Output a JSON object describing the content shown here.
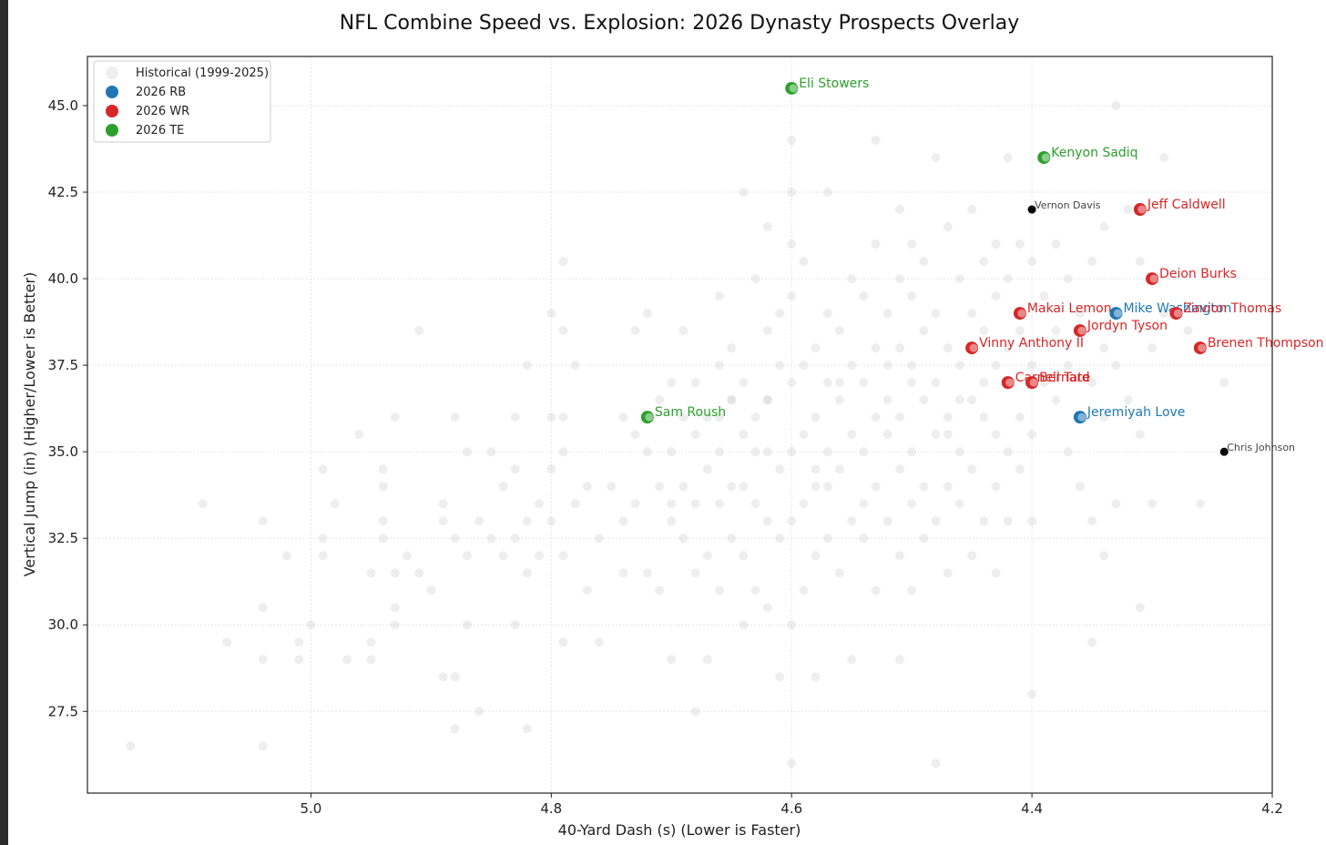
{
  "chart_data": {
    "type": "scatter",
    "title": "NFL Combine Speed vs. Explosion: 2026 Dynasty Prospects Overlay",
    "xlabel": "40-Yard Dash (s) (Lower is Faster)",
    "ylabel": "Vertical Jump (in) (Higher/Lower is Better)",
    "xlim": [
      5.186,
      4.2
    ],
    "ylim": [
      25.14,
      46.42
    ],
    "x_inverted": true,
    "x_ticks": [
      5.0,
      4.8,
      4.6,
      4.4,
      4.2
    ],
    "x_tick_labels": [
      "5.0",
      "4.8",
      "4.6",
      "4.4",
      "4.2"
    ],
    "y_ticks": [
      27.5,
      30.0,
      32.5,
      35.0,
      37.5,
      40.0,
      42.5,
      45.0
    ],
    "y_tick_labels": [
      "27.5",
      "30.0",
      "32.5",
      "35.0",
      "37.5",
      "40.0",
      "42.5",
      "45.0"
    ],
    "grid": true,
    "legend_position": "top-left",
    "legend": [
      {
        "label": "Historical (1999-2025)",
        "color": "#d9d9d9"
      },
      {
        "label": "2026 RB",
        "color": "#1f77b4"
      },
      {
        "label": "2026 WR",
        "color": "#d62728"
      },
      {
        "label": "2026 TE",
        "color": "#2ca02c"
      }
    ],
    "series": [
      {
        "name": "2026 RB",
        "color": "#1f77b4",
        "points": [
          {
            "label": "Mike Washington",
            "x": 4.33,
            "y": 39.0
          },
          {
            "label": "Jeremiyah Love",
            "x": 4.36,
            "y": 36.0
          }
        ]
      },
      {
        "name": "2026 WR",
        "color": "#d62728",
        "points": [
          {
            "label": "Jeff Caldwell",
            "x": 4.31,
            "y": 42.0
          },
          {
            "label": "Deion Burks",
            "x": 4.3,
            "y": 40.0
          },
          {
            "label": "Makai Lemon",
            "x": 4.41,
            "y": 39.0
          },
          {
            "label": "Zavion Thomas",
            "x": 4.28,
            "y": 39.0
          },
          {
            "label": "Jordyn Tyson",
            "x": 4.36,
            "y": 38.5
          },
          {
            "label": "Vinny Anthony II",
            "x": 4.45,
            "y": 38.0
          },
          {
            "label": "Brenen Thompson",
            "x": 4.26,
            "y": 38.0
          },
          {
            "label": "Carnell Tate",
            "x": 4.42,
            "y": 37.0
          },
          {
            "label": "Bernard",
            "x": 4.4,
            "y": 37.0
          }
        ]
      },
      {
        "name": "2026 TE",
        "color": "#2ca02c",
        "points": [
          {
            "label": "Eli Stowers",
            "x": 4.6,
            "y": 45.5
          },
          {
            "label": "Kenyon Sadiq",
            "x": 4.39,
            "y": 43.5
          },
          {
            "label": "Sam Roush",
            "x": 4.72,
            "y": 36.0
          }
        ]
      }
    ],
    "reference_points": [
      {
        "label": "Vernon Davis",
        "x": 4.4,
        "y": 42.0,
        "color": "#000000"
      },
      {
        "label": "Chris Johnson",
        "x": 4.24,
        "y": 35.0,
        "color": "#000000"
      }
    ],
    "historical": [
      [
        5.15,
        26.5
      ],
      [
        5.04,
        26.5
      ],
      [
        5.09,
        33.5
      ],
      [
        5.07,
        29.5
      ],
      [
        5.04,
        30.5
      ],
      [
        5.04,
        29.0
      ],
      [
        5.04,
        33.0
      ],
      [
        5.02,
        32.0
      ],
      [
        5.01,
        29.0
      ],
      [
        5.01,
        29.5
      ],
      [
        5.0,
        30.0
      ],
      [
        4.99,
        34.5
      ],
      [
        4.99,
        32.5
      ],
      [
        4.99,
        32.0
      ],
      [
        4.98,
        33.5
      ],
      [
        4.97,
        29.0
      ],
      [
        4.96,
        35.5
      ],
      [
        4.95,
        29.5
      ],
      [
        4.95,
        29.0
      ],
      [
        4.95,
        31.5
      ],
      [
        4.94,
        34.5
      ],
      [
        4.94,
        34.0
      ],
      [
        4.94,
        33.0
      ],
      [
        4.94,
        32.5
      ],
      [
        4.93,
        31.5
      ],
      [
        4.93,
        30.5
      ],
      [
        4.93,
        30.0
      ],
      [
        4.92,
        32.0
      ],
      [
        4.91,
        38.5
      ],
      [
        4.91,
        31.5
      ],
      [
        4.9,
        31.0
      ],
      [
        4.89,
        33.5
      ],
      [
        4.89,
        33.0
      ],
      [
        4.89,
        28.5
      ],
      [
        4.88,
        36.0
      ],
      [
        4.88,
        32.5
      ],
      [
        4.88,
        28.5
      ],
      [
        4.88,
        27.0
      ],
      [
        4.87,
        35.0
      ],
      [
        4.87,
        32.0
      ],
      [
        4.86,
        33.0
      ],
      [
        4.86,
        27.5
      ],
      [
        4.85,
        35.0
      ],
      [
        4.85,
        32.5
      ],
      [
        4.84,
        34.0
      ],
      [
        4.84,
        32.0
      ],
      [
        4.83,
        36.0
      ],
      [
        4.83,
        34.5
      ],
      [
        4.83,
        32.5
      ],
      [
        4.83,
        30.0
      ],
      [
        4.82,
        37.5
      ],
      [
        4.82,
        33.0
      ],
      [
        4.82,
        31.5
      ],
      [
        4.82,
        27.0
      ],
      [
        4.81,
        33.5
      ],
      [
        4.81,
        32.0
      ],
      [
        4.8,
        39.0
      ],
      [
        4.8,
        36.0
      ],
      [
        4.8,
        34.5
      ],
      [
        4.8,
        33.0
      ],
      [
        4.79,
        40.5
      ],
      [
        4.79,
        38.5
      ],
      [
        4.79,
        36.0
      ],
      [
        4.79,
        35.0
      ],
      [
        4.79,
        32.0
      ],
      [
        4.79,
        29.5
      ],
      [
        4.78,
        37.5
      ],
      [
        4.78,
        33.5
      ],
      [
        4.77,
        34.0
      ],
      [
        4.77,
        31.0
      ],
      [
        4.76,
        32.5
      ],
      [
        4.75,
        34.0
      ],
      [
        4.74,
        36.0
      ],
      [
        4.74,
        33.0
      ],
      [
        4.74,
        31.5
      ],
      [
        4.73,
        38.5
      ],
      [
        4.73,
        35.5
      ],
      [
        4.73,
        33.5
      ],
      [
        4.72,
        39.0
      ],
      [
        4.72,
        35.0
      ],
      [
        4.71,
        36.5
      ],
      [
        4.71,
        34.0
      ],
      [
        4.71,
        31.0
      ],
      [
        4.7,
        37.0
      ],
      [
        4.7,
        35.0
      ],
      [
        4.7,
        33.0
      ],
      [
        4.7,
        29.0
      ],
      [
        4.69,
        38.5
      ],
      [
        4.69,
        36.0
      ],
      [
        4.69,
        34.0
      ],
      [
        4.68,
        37.0
      ],
      [
        4.68,
        35.5
      ],
      [
        4.68,
        33.5
      ],
      [
        4.68,
        31.5
      ],
      [
        4.68,
        27.5
      ],
      [
        4.67,
        36.0
      ],
      [
        4.67,
        34.5
      ],
      [
        4.67,
        32.0
      ],
      [
        4.67,
        29.0
      ],
      [
        4.66,
        39.5
      ],
      [
        4.66,
        37.5
      ],
      [
        4.66,
        36.0
      ],
      [
        4.66,
        35.0
      ],
      [
        4.66,
        33.5
      ],
      [
        4.66,
        31.0
      ],
      [
        4.65,
        38.0
      ],
      [
        4.65,
        36.5
      ],
      [
        4.65,
        34.0
      ],
      [
        4.65,
        32.5
      ],
      [
        4.64,
        42.5
      ],
      [
        4.64,
        37.0
      ],
      [
        4.64,
        35.5
      ],
      [
        4.64,
        34.0
      ],
      [
        4.64,
        32.0
      ],
      [
        4.64,
        30.0
      ],
      [
        4.63,
        40.0
      ],
      [
        4.63,
        36.0
      ],
      [
        4.63,
        33.5
      ],
      [
        4.63,
        31.0
      ],
      [
        4.62,
        41.5
      ],
      [
        4.62,
        38.5
      ],
      [
        4.62,
        36.5
      ],
      [
        4.62,
        35.0
      ],
      [
        4.62,
        33.0
      ],
      [
        4.62,
        30.5
      ],
      [
        4.61,
        39.0
      ],
      [
        4.61,
        37.5
      ],
      [
        4.61,
        34.5
      ],
      [
        4.61,
        32.5
      ],
      [
        4.61,
        28.5
      ],
      [
        4.6,
        44.0
      ],
      [
        4.6,
        42.5
      ],
      [
        4.6,
        41.0
      ],
      [
        4.6,
        39.5
      ],
      [
        4.6,
        37.0
      ],
      [
        4.6,
        35.0
      ],
      [
        4.6,
        33.0
      ],
      [
        4.6,
        30.0
      ],
      [
        4.6,
        26.0
      ],
      [
        4.59,
        40.5
      ],
      [
        4.59,
        37.5
      ],
      [
        4.59,
        35.5
      ],
      [
        4.59,
        33.5
      ],
      [
        4.59,
        31.0
      ],
      [
        4.58,
        38.0
      ],
      [
        4.58,
        36.0
      ],
      [
        4.58,
        34.0
      ],
      [
        4.58,
        32.0
      ],
      [
        4.58,
        28.5
      ],
      [
        4.57,
        42.5
      ],
      [
        4.57,
        39.0
      ],
      [
        4.57,
        37.0
      ],
      [
        4.57,
        35.0
      ],
      [
        4.57,
        32.5
      ],
      [
        4.56,
        38.5
      ],
      [
        4.56,
        36.5
      ],
      [
        4.56,
        34.5
      ],
      [
        4.56,
        31.5
      ],
      [
        4.55,
        40.0
      ],
      [
        4.55,
        37.5
      ],
      [
        4.55,
        35.5
      ],
      [
        4.55,
        33.0
      ],
      [
        4.55,
        29.0
      ],
      [
        4.54,
        39.5
      ],
      [
        4.54,
        37.0
      ],
      [
        4.54,
        35.0
      ],
      [
        4.54,
        32.5
      ],
      [
        4.53,
        44.0
      ],
      [
        4.53,
        41.0
      ],
      [
        4.53,
        38.0
      ],
      [
        4.53,
        36.0
      ],
      [
        4.53,
        34.0
      ],
      [
        4.53,
        31.0
      ],
      [
        4.52,
        39.0
      ],
      [
        4.52,
        37.5
      ],
      [
        4.52,
        35.5
      ],
      [
        4.52,
        33.0
      ],
      [
        4.51,
        42.0
      ],
      [
        4.51,
        40.0
      ],
      [
        4.51,
        38.0
      ],
      [
        4.51,
        36.0
      ],
      [
        4.51,
        34.5
      ],
      [
        4.51,
        32.0
      ],
      [
        4.51,
        29.0
      ],
      [
        4.5,
        41.0
      ],
      [
        4.5,
        39.5
      ],
      [
        4.5,
        37.0
      ],
      [
        4.5,
        35.0
      ],
      [
        4.5,
        33.5
      ],
      [
        4.5,
        31.0
      ],
      [
        4.49,
        40.5
      ],
      [
        4.49,
        38.5
      ],
      [
        4.49,
        36.5
      ],
      [
        4.49,
        34.0
      ],
      [
        4.49,
        32.5
      ],
      [
        4.48,
        43.5
      ],
      [
        4.48,
        39.0
      ],
      [
        4.48,
        37.0
      ],
      [
        4.48,
        35.5
      ],
      [
        4.48,
        33.0
      ],
      [
        4.48,
        26.0
      ],
      [
        4.47,
        41.5
      ],
      [
        4.47,
        38.0
      ],
      [
        4.47,
        36.0
      ],
      [
        4.47,
        34.0
      ],
      [
        4.47,
        31.5
      ],
      [
        4.46,
        40.0
      ],
      [
        4.46,
        37.5
      ],
      [
        4.46,
        35.0
      ],
      [
        4.46,
        33.5
      ],
      [
        4.45,
        42.0
      ],
      [
        4.45,
        39.0
      ],
      [
        4.45,
        36.5
      ],
      [
        4.45,
        34.5
      ],
      [
        4.45,
        32.0
      ],
      [
        4.44,
        40.5
      ],
      [
        4.44,
        38.5
      ],
      [
        4.44,
        36.0
      ],
      [
        4.44,
        33.0
      ],
      [
        4.43,
        41.0
      ],
      [
        4.43,
        39.5
      ],
      [
        4.43,
        37.5
      ],
      [
        4.43,
        35.5
      ],
      [
        4.43,
        31.5
      ],
      [
        4.42,
        43.5
      ],
      [
        4.42,
        40.0
      ],
      [
        4.42,
        38.0
      ],
      [
        4.42,
        35.0
      ],
      [
        4.42,
        33.0
      ],
      [
        4.41,
        41.0
      ],
      [
        4.41,
        38.5
      ],
      [
        4.41,
        36.0
      ],
      [
        4.41,
        34.5
      ],
      [
        4.4,
        40.5
      ],
      [
        4.4,
        37.5
      ],
      [
        4.4,
        35.5
      ],
      [
        4.4,
        33.0
      ],
      [
        4.4,
        28.0
      ],
      [
        4.39,
        39.5
      ],
      [
        4.39,
        37.0
      ],
      [
        4.38,
        41.0
      ],
      [
        4.38,
        38.5
      ],
      [
        4.38,
        36.5
      ],
      [
        4.37,
        40.0
      ],
      [
        4.37,
        37.5
      ],
      [
        4.37,
        35.0
      ],
      [
        4.36,
        39.0
      ],
      [
        4.36,
        34.0
      ],
      [
        4.35,
        40.5
      ],
      [
        4.35,
        37.0
      ],
      [
        4.35,
        33.0
      ],
      [
        4.35,
        29.5
      ],
      [
        4.34,
        41.5
      ],
      [
        4.34,
        38.0
      ],
      [
        4.34,
        36.0
      ],
      [
        4.34,
        32.0
      ],
      [
        4.33,
        45.0
      ],
      [
        4.33,
        37.5
      ],
      [
        4.33,
        33.5
      ],
      [
        4.32,
        42.0
      ],
      [
        4.32,
        36.5
      ],
      [
        4.31,
        40.5
      ],
      [
        4.31,
        35.5
      ],
      [
        4.31,
        30.5
      ],
      [
        4.3,
        38.0
      ],
      [
        4.3,
        33.5
      ],
      [
        4.29,
        43.5
      ],
      [
        4.29,
        39.0
      ],
      [
        4.27,
        38.5
      ],
      [
        4.26,
        33.5
      ],
      [
        4.24,
        37.0
      ],
      [
        4.93,
        36.0
      ],
      [
        4.87,
        30.0
      ],
      [
        4.76,
        29.5
      ],
      [
        4.7,
        33.5
      ],
      [
        4.62,
        36.5
      ],
      [
        4.58,
        34.5
      ],
      [
        4.56,
        37.0
      ],
      [
        4.52,
        36.5
      ],
      [
        4.5,
        37.5
      ],
      [
        4.46,
        36.5
      ],
      [
        4.44,
        37.0
      ],
      [
        4.43,
        34.0
      ],
      [
        4.47,
        35.5
      ],
      [
        4.54,
        33.5
      ],
      [
        4.57,
        34.0
      ],
      [
        4.63,
        35.0
      ],
      [
        4.65,
        36.5
      ],
      [
        4.69,
        32.5
      ],
      [
        4.72,
        31.5
      ]
    ]
  }
}
